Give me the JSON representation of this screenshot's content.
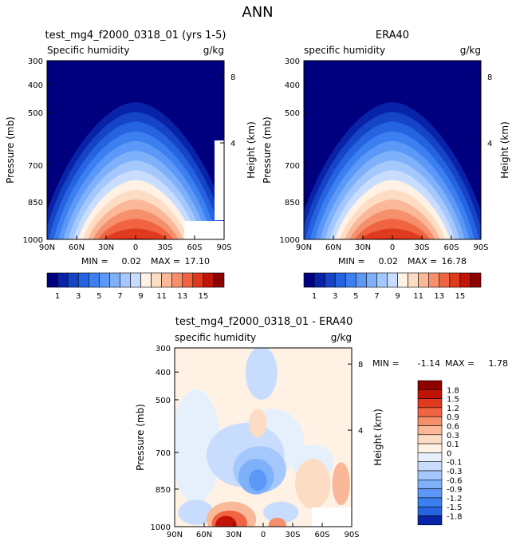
{
  "figure": {
    "title": "ANN"
  },
  "chart_data": [
    {
      "type": "heatmap",
      "title": "test_mg4_f2000_0318_01 (yrs 1-5)",
      "subtitle_left": "Specific humidity",
      "units": "g/kg",
      "xlabel": "",
      "ylabel": "Pressure (mb)",
      "y2label": "Height (km)",
      "x_ticks": [
        "90N",
        "60N",
        "30N",
        "0",
        "30S",
        "60S",
        "90S"
      ],
      "y_ticks": [
        "300",
        "400",
        "500",
        "700",
        "850",
        "1000"
      ],
      "y2_ticks": [
        "8",
        "4"
      ],
      "min_label": "MIN =",
      "min_value": "0.02",
      "max_label": "MAX =",
      "max_value": "17.10",
      "peak_lat": 0,
      "peak_value": 17.1
    },
    {
      "type": "heatmap",
      "title": "ERA40",
      "subtitle_left": "specific humidity",
      "units": "g/kg",
      "xlabel": "",
      "ylabel": "Pressure (mb)",
      "y2label": "Height (km)",
      "x_ticks": [
        "90N",
        "60N",
        "30N",
        "0",
        "30S",
        "60S",
        "90S"
      ],
      "y_ticks": [
        "300",
        "400",
        "500",
        "700",
        "850",
        "1000"
      ],
      "y2_ticks": [
        "8",
        "4"
      ],
      "min_label": "MIN =",
      "min_value": "0.02",
      "max_label": "MAX =",
      "max_value": "16.78",
      "peak_lat": 0,
      "peak_value": 16.78
    },
    {
      "type": "heatmap",
      "title": "test_mg4_f2000_0318_01 - ERA40",
      "subtitle_left": "specific humidity",
      "units": "g/kg",
      "xlabel": "",
      "ylabel": "Pressure (mb)",
      "y2label": "Height (km)",
      "x_ticks": [
        "90N",
        "60N",
        "30N",
        "0",
        "30S",
        "60S",
        "90S"
      ],
      "y_ticks": [
        "300",
        "400",
        "500",
        "700",
        "850",
        "1000"
      ],
      "y2_ticks": [
        "8",
        "4"
      ],
      "min_label": "MIN =",
      "min_value": "-1.14",
      "max_label": "MAX =",
      "max_value": "1.78"
    }
  ],
  "colorbar_abs": {
    "tick_labels": [
      "1",
      "3",
      "5",
      "7",
      "9",
      "11",
      "13",
      "15"
    ],
    "colors": [
      "#00007f",
      "#0822a8",
      "#1544c6",
      "#2563e0",
      "#3c7ff0",
      "#5c98f7",
      "#7fb1fb",
      "#a4c8fd",
      "#c8ddfd",
      "#fff2e4",
      "#fddcc4",
      "#fab898",
      "#f6906c",
      "#f06442",
      "#e03a1e",
      "#c21406",
      "#8f0000"
    ]
  },
  "colorbar_diff": {
    "tick_labels": [
      "1.8",
      "1.5",
      "1.2",
      "0.9",
      "0.6",
      "0.3",
      "0.1",
      "0",
      "-0.1",
      "-0.3",
      "-0.6",
      "-0.9",
      "-1.2",
      "-1.5",
      "-1.8"
    ],
    "colors": [
      "#8f0000",
      "#c21406",
      "#e03a1e",
      "#f06442",
      "#f6906c",
      "#fab898",
      "#fddcc4",
      "#fff2e4",
      "#e6f0fc",
      "#c8ddfd",
      "#a4c8fd",
      "#7fb1fb",
      "#5c98f7",
      "#3c7ff0",
      "#2563e0",
      "#0822a8"
    ]
  }
}
